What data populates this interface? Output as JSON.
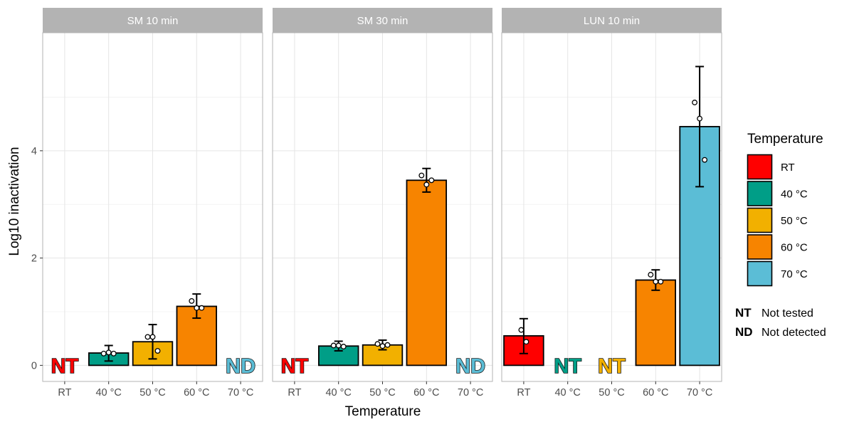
{
  "chart_data": {
    "type": "bar",
    "xlabel": "Temperature",
    "ylabel": "Log10 inactivation",
    "ylim": [
      -0.3,
      6.2
    ],
    "y_ticks": [
      0,
      2,
      4
    ],
    "categories": [
      "RT",
      "40 °C",
      "50 °C",
      "60 °C",
      "70 °C"
    ],
    "category_keys": [
      "RT",
      "40",
      "50",
      "60",
      "70"
    ],
    "grid": true,
    "legend": {
      "title": "Temperature",
      "position": "right",
      "items": [
        {
          "key": "RT",
          "label": "RT"
        },
        {
          "key": "40",
          "label": "40 °C"
        },
        {
          "key": "50",
          "label": "50 °C"
        },
        {
          "key": "60",
          "label": "60 °C"
        },
        {
          "key": "70",
          "label": "70 °C"
        }
      ]
    },
    "colors": {
      "RT": "#ff0000",
      "40": "#009e87",
      "50": "#f2b000",
      "60": "#f78400",
      "70": "#5bbdd6"
    },
    "panels": [
      {
        "title": "SM 10 min",
        "bars": [
          {
            "category": "RT",
            "value": null,
            "annotation": "NT"
          },
          {
            "category": "40",
            "value": 0.23,
            "error": [
              0.08,
              0.37
            ],
            "points": [
              0.22,
              0.24,
              0.22
            ]
          },
          {
            "category": "50",
            "value": 0.44,
            "error": [
              0.12,
              0.76
            ],
            "points": [
              0.53,
              0.53,
              0.27
            ]
          },
          {
            "category": "60",
            "value": 1.1,
            "error": [
              0.88,
              1.33
            ],
            "points": [
              1.2,
              1.07,
              1.07
            ]
          },
          {
            "category": "70",
            "value": null,
            "annotation": "ND"
          }
        ]
      },
      {
        "title": "SM 30 min",
        "bars": [
          {
            "category": "RT",
            "value": null,
            "annotation": "NT"
          },
          {
            "category": "40",
            "value": 0.36,
            "error": [
              0.27,
              0.45
            ],
            "points": [
              0.37,
              0.37,
              0.35
            ]
          },
          {
            "category": "50",
            "value": 0.38,
            "error": [
              0.29,
              0.47
            ],
            "points": [
              0.4,
              0.36,
              0.38
            ]
          },
          {
            "category": "60",
            "value": 3.45,
            "error": [
              3.23,
              3.67
            ],
            "points": [
              3.54,
              3.37,
              3.45
            ]
          },
          {
            "category": "70",
            "value": null,
            "annotation": "ND"
          }
        ]
      },
      {
        "title": "LUN 10 min",
        "bars": [
          {
            "category": "RT",
            "value": 0.55,
            "error": [
              0.22,
              0.87
            ],
            "points": [
              0.66,
              0.44
            ]
          },
          {
            "category": "40",
            "value": null,
            "annotation": "NT"
          },
          {
            "category": "50",
            "value": null,
            "annotation": "NT"
          },
          {
            "category": "60",
            "value": 1.59,
            "error": [
              1.4,
              1.78
            ],
            "points": [
              1.69,
              1.56,
              1.56
            ]
          },
          {
            "category": "70",
            "value": 4.45,
            "error": [
              3.33,
              5.57
            ],
            "points": [
              4.9,
              4.6,
              3.83
            ]
          }
        ]
      }
    ]
  },
  "notes": [
    {
      "code": "NT",
      "text": "Not tested"
    },
    {
      "code": "ND",
      "text": "Not detected"
    }
  ]
}
